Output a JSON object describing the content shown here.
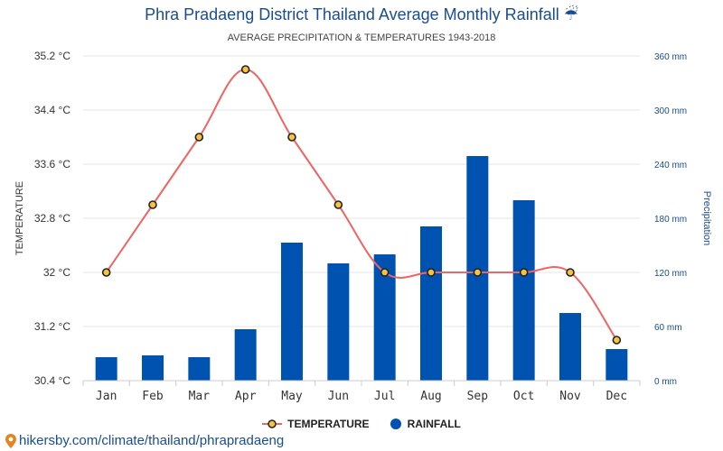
{
  "page": {
    "title": "Phra Pradaeng District Thailand Average Monthly Rainfall ☔",
    "subtitle": "AVERAGE PRECIPITATION & TEMPERATURES 1943-2018",
    "source_link": "hikersby.com/climate/thailand/phrapradaeng"
  },
  "colors": {
    "rainfall_bar": "#0052b0",
    "temperature_line": "#f06464",
    "temperature_point_fill": "#f5c242",
    "temperature_point_stroke": "#222222",
    "title": "#1a4d8f",
    "right_axis": "#1a4d8f",
    "grid": "#e6e6e6"
  },
  "chart_data": {
    "type": "bar",
    "title": "Phra Pradaeng District Thailand Average Monthly Rainfall ☔",
    "subtitle": "AVERAGE PRECIPITATION & TEMPERATURES 1943-2018",
    "categories": [
      "Jan",
      "Feb",
      "Mar",
      "Apr",
      "May",
      "Jun",
      "Jul",
      "Aug",
      "Sep",
      "Oct",
      "Nov",
      "Dec"
    ],
    "ylabel_left": "TEMPERATURE",
    "ylabel_right": "Precipitation",
    "left_axis": {
      "range": [
        30.4,
        35.2
      ],
      "ticks": [
        30.4,
        31.2,
        32,
        32.8,
        33.6,
        34.4,
        35.2
      ],
      "tick_labels": [
        "30.4 °C",
        "31.2 °C",
        "32 °C",
        "32.8 °C",
        "33.6 °C",
        "34.4 °C",
        "35.2 °C"
      ]
    },
    "right_axis": {
      "range": [
        0,
        360
      ],
      "ticks": [
        0,
        60,
        120,
        180,
        240,
        300,
        360
      ],
      "tick_labels": [
        "0 mm",
        "60 mm",
        "120 mm",
        "180 mm",
        "240 mm",
        "300 mm",
        "360 mm"
      ]
    },
    "grid": true,
    "legend_position": "bottom",
    "series": [
      {
        "name": "TEMPERATURE",
        "type": "line",
        "axis": "left",
        "unit": "°C",
        "values": [
          32,
          33,
          34,
          35,
          34,
          33,
          32,
          32,
          32,
          32,
          32,
          31
        ]
      },
      {
        "name": "RAINFALL",
        "type": "bar",
        "axis": "right",
        "unit": "mm",
        "values": [
          26,
          28,
          26,
          57,
          153,
          130,
          140,
          171,
          249,
          200,
          75,
          35
        ]
      }
    ]
  }
}
